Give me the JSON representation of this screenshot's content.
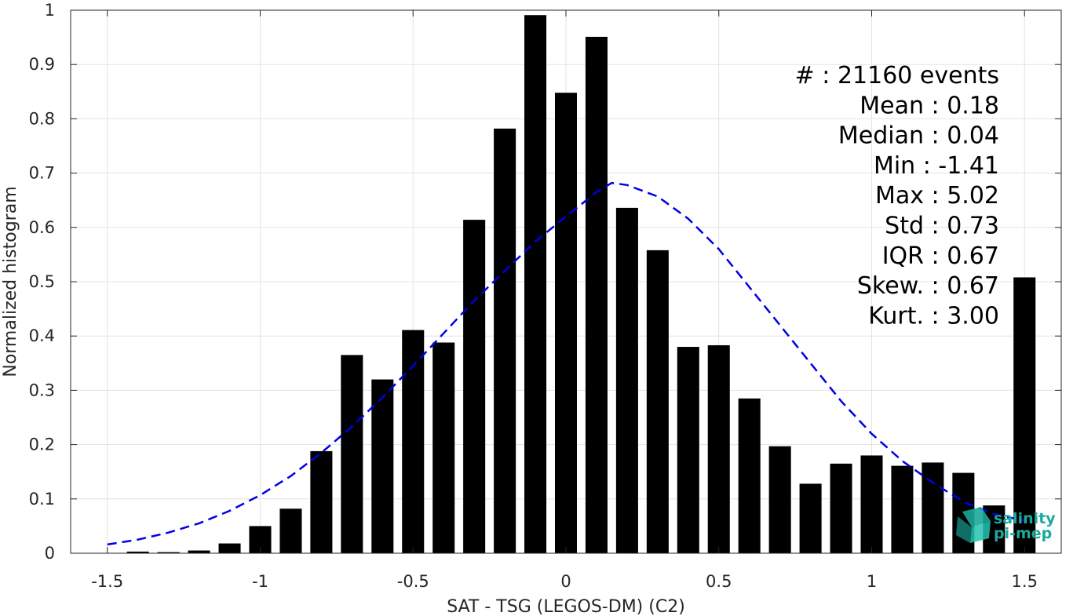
{
  "chart_data": {
    "type": "bar",
    "xlabel": "SAT - TSG (LEGOS-DM) (C2)",
    "ylabel": "Normalized histogram",
    "xlim": [
      -1.62,
      1.62
    ],
    "ylim": [
      0,
      1
    ],
    "x_ticks": [
      -1.5,
      -1,
      -0.5,
      0,
      0.5,
      1,
      1.5
    ],
    "x_tick_labels": [
      "-1.5",
      "-1",
      "-0.5",
      "0",
      "0.5",
      "1",
      "1.5"
    ],
    "y_ticks": [
      0,
      0.1,
      0.2,
      0.3,
      0.4,
      0.5,
      0.6,
      0.7,
      0.8,
      0.9,
      1
    ],
    "y_tick_labels": [
      "0",
      "0.1",
      "0.2",
      "0.3",
      "0.4",
      "0.5",
      "0.6",
      "0.7",
      "0.8",
      "0.9",
      "1"
    ],
    "grid": true,
    "bar_color": "#000000",
    "bins": [
      -1.4,
      -1.3,
      -1.2,
      -1.1,
      -1.0,
      -0.9,
      -0.8,
      -0.7,
      -0.6,
      -0.5,
      -0.4,
      -0.3,
      -0.2,
      -0.1,
      0.0,
      0.1,
      0.2,
      0.3,
      0.4,
      0.5,
      0.6,
      0.7,
      0.8,
      0.9,
      1.0,
      1.1,
      1.2,
      1.3,
      1.4,
      1.5
    ],
    "values": [
      0.003,
      0.002,
      0.005,
      0.018,
      0.05,
      0.082,
      0.188,
      0.365,
      0.32,
      0.411,
      0.388,
      0.614,
      0.782,
      0.991,
      0.848,
      0.951,
      0.636,
      0.558,
      0.38,
      0.383,
      0.285,
      0.197,
      0.128,
      0.165,
      0.18,
      0.161,
      0.167,
      0.148,
      0.088,
      0.508
    ],
    "fit_curve": {
      "style": "dashed",
      "color": "#0000e6",
      "x": [
        -1.5,
        -1.4,
        -1.3,
        -1.2,
        -1.1,
        -1.0,
        -0.9,
        -0.8,
        -0.7,
        -0.6,
        -0.5,
        -0.4,
        -0.3,
        -0.2,
        -0.1,
        0.0,
        0.1,
        0.15,
        0.2,
        0.3,
        0.4,
        0.5,
        0.6,
        0.7,
        0.8,
        0.9,
        1.0,
        1.1,
        1.2,
        1.3,
        1.4,
        1.5
      ],
      "y": [
        0.016,
        0.025,
        0.038,
        0.055,
        0.078,
        0.107,
        0.142,
        0.185,
        0.233,
        0.287,
        0.345,
        0.405,
        0.465,
        0.52,
        0.574,
        0.62,
        0.665,
        0.682,
        0.678,
        0.657,
        0.616,
        0.56,
        0.49,
        0.42,
        0.35,
        0.28,
        0.22,
        0.17,
        0.13,
        0.095,
        0.072,
        0.06
      ]
    },
    "stats": [
      "#  : 21160 events",
      "Mean : 0.18",
      "Median : 0.04",
      "Min : -1.41",
      "Max : 5.02",
      "Std : 0.73",
      "IQR : 0.67",
      "Skew. : 0.67",
      "Kurt. : 3.00"
    ]
  },
  "logo": {
    "line1": "salinity",
    "line2": "pi-mep",
    "color": "#1aa99a"
  }
}
